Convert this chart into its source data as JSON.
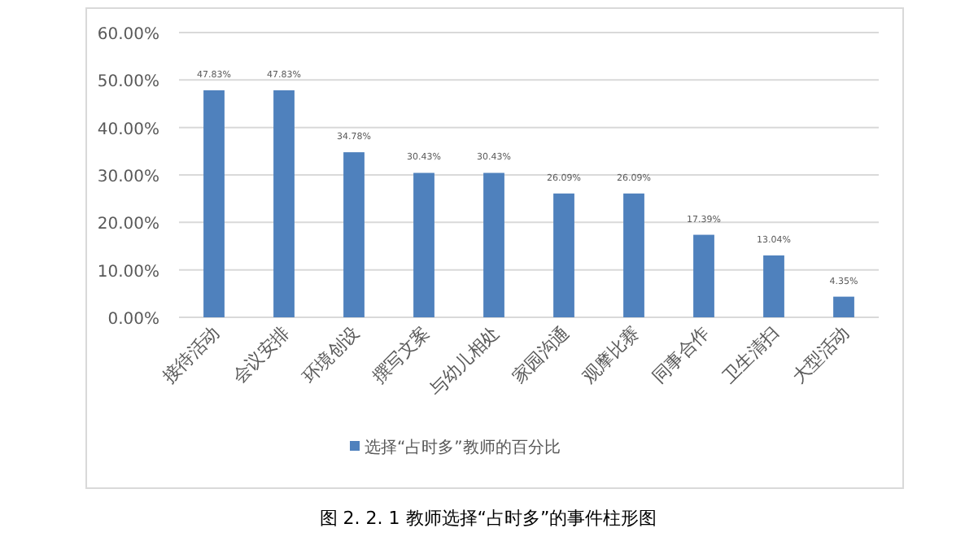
{
  "chart_data": {
    "type": "bar",
    "categories": [
      "接待活动",
      "会议安排",
      "环境创设",
      "撰写文案",
      "与幼儿相处",
      "家园沟通",
      "观摩比赛",
      "同事合作",
      "卫生清扫",
      "大型活动"
    ],
    "series": [
      {
        "name": "选择“占时多”教师的百分比",
        "color": "#4f81bd",
        "values": [
          47.83,
          47.83,
          34.78,
          30.43,
          30.43,
          26.09,
          26.09,
          17.39,
          13.04,
          4.35
        ],
        "value_labels": [
          "47.83%",
          "47.83%",
          "34.78%",
          "30.43%",
          "30.43%",
          "26.09%",
          "26.09%",
          "17.39%",
          "13.04%",
          "4.35%"
        ]
      }
    ],
    "ylim": [
      0,
      60
    ],
    "yticks": [
      {
        "value": 0,
        "label": "0.00%"
      },
      {
        "value": 10,
        "label": "10.00%"
      },
      {
        "value": 20,
        "label": "20.00%"
      },
      {
        "value": 30,
        "label": "30.00%"
      },
      {
        "value": 40,
        "label": "40.00%"
      },
      {
        "value": 50,
        "label": "50.00%"
      },
      {
        "value": 60,
        "label": "60.00%"
      }
    ],
    "grid": "y",
    "legend": "bottom",
    "annotations": [
      "图 2. 2. 1 教师选择“占时多”的事件柱形图"
    ]
  }
}
